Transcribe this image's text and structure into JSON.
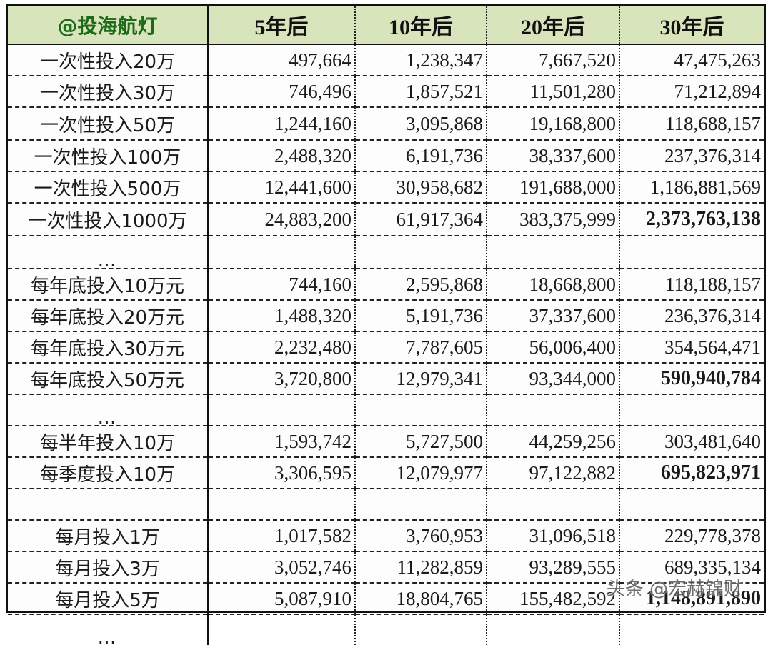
{
  "table": {
    "corner_label": "@投海航灯",
    "columns": [
      "5年后",
      "10年后",
      "20年后",
      "30年后"
    ],
    "rows": [
      {
        "label": "一次性投入20万",
        "values": [
          "497,664",
          "1,238,347",
          "7,667,520",
          "47,475,263"
        ],
        "bold_last": false
      },
      {
        "label": "一次性投入30万",
        "values": [
          "746,496",
          "1,857,521",
          "11,501,280",
          "71,212,894"
        ],
        "bold_last": false
      },
      {
        "label": "一次性投入50万",
        "values": [
          "1,244,160",
          "3,095,868",
          "19,168,800",
          "118,688,157"
        ],
        "bold_last": false
      },
      {
        "label": "一次性投入100万",
        "values": [
          "2,488,320",
          "6,191,736",
          "38,337,600",
          "237,376,314"
        ],
        "bold_last": false
      },
      {
        "label": "一次性投入500万",
        "values": [
          "12,441,600",
          "30,958,682",
          "191,688,000",
          "1,186,881,569"
        ],
        "bold_last": false
      },
      {
        "label": "一次性投入1000万",
        "values": [
          "24,883,200",
          "61,917,364",
          "383,375,999",
          "2,373,763,138"
        ],
        "bold_last": true
      },
      {
        "label": "…",
        "values": [
          "",
          "",
          "",
          ""
        ],
        "bold_last": false
      },
      {
        "label": "每年底投入10万元",
        "values": [
          "744,160",
          "2,595,868",
          "18,668,800",
          "118,188,157"
        ],
        "bold_last": false
      },
      {
        "label": "每年底投入20万元",
        "values": [
          "1,488,320",
          "5,191,736",
          "37,337,600",
          "236,376,314"
        ],
        "bold_last": false
      },
      {
        "label": "每年底投入30万元",
        "values": [
          "2,232,480",
          "7,787,605",
          "56,006,400",
          "354,564,471"
        ],
        "bold_last": false
      },
      {
        "label": "每年底投入50万元",
        "values": [
          "3,720,800",
          "12,979,341",
          "93,344,000",
          "590,940,784"
        ],
        "bold_last": true
      },
      {
        "label": "…",
        "values": [
          "",
          "",
          "",
          ""
        ],
        "bold_last": false
      },
      {
        "label": "每半年投入10万",
        "values": [
          "1,593,742",
          "5,727,500",
          "44,259,256",
          "303,481,640"
        ],
        "bold_last": false
      },
      {
        "label": "每季度投入10万",
        "values": [
          "3,306,595",
          "12,079,977",
          "97,122,882",
          "695,823,971"
        ],
        "bold_last": true
      },
      {
        "label": "",
        "values": [
          "",
          "",
          "",
          ""
        ],
        "bold_last": false
      },
      {
        "label": "每月投入1万",
        "values": [
          "1,017,582",
          "3,760,953",
          "31,096,518",
          "229,778,378"
        ],
        "bold_last": false
      },
      {
        "label": "每月投入3万",
        "values": [
          "3,052,746",
          "11,282,859",
          "93,289,555",
          "689,335,134"
        ],
        "bold_last": false
      },
      {
        "label": "每月投入5万",
        "values": [
          "5,087,910",
          "18,804,765",
          "155,482,592",
          "1,148,891,890"
        ],
        "bold_last": true
      },
      {
        "label": "…",
        "values": [
          "",
          "",
          "",
          ""
        ],
        "bold_last": false
      }
    ]
  },
  "watermark": "头条 @宏赫锦财",
  "colors": {
    "header_bg": "#d8e4bc",
    "corner_text": "#1d6a18",
    "border": "#111111"
  }
}
